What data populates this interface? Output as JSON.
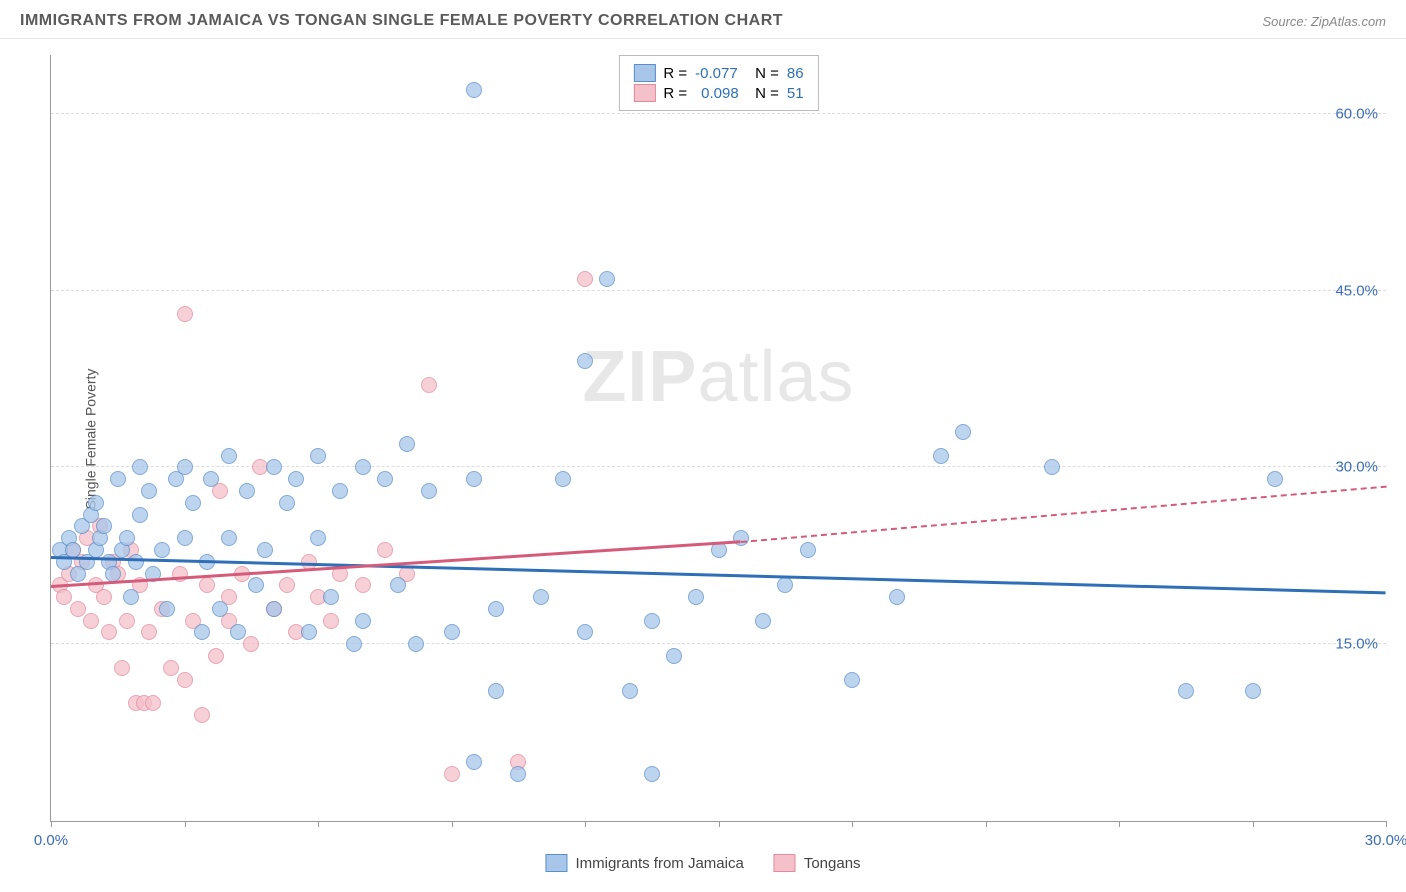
{
  "title": "IMMIGRANTS FROM JAMAICA VS TONGAN SINGLE FEMALE POVERTY CORRELATION CHART",
  "source": "Source: ZipAtlas.com",
  "ylabel": "Single Female Poverty",
  "watermark_zip": "ZIP",
  "watermark_atlas": "atlas",
  "chart": {
    "type": "scatter",
    "xlim": [
      0,
      30
    ],
    "ylim": [
      0,
      65
    ],
    "background_color": "#ffffff",
    "grid_color": "#dddddd",
    "xtick_positions": [
      0,
      3,
      6,
      9,
      12,
      15,
      18,
      21,
      24,
      27,
      30
    ],
    "xtick_labels": {
      "0": "0.0%",
      "30": "30.0%"
    },
    "ytick_positions": [
      15,
      30,
      45,
      60
    ],
    "ytick_labels": {
      "15": "15.0%",
      "30": "30.0%",
      "45": "45.0%",
      "60": "60.0%"
    },
    "marker_size": 16,
    "series": [
      {
        "name": "Immigrants from Jamaica",
        "fill_color": "#a8c6ea",
        "stroke_color": "#5b8fc7",
        "line_color": "#2f6fb8",
        "R": "-0.077",
        "N": "86",
        "trend": {
          "x1": 0,
          "y1": 22.5,
          "x2": 30,
          "y2": 19.5
        },
        "points": [
          [
            0.2,
            23
          ],
          [
            0.3,
            22
          ],
          [
            0.4,
            24
          ],
          [
            0.5,
            23
          ],
          [
            0.6,
            21
          ],
          [
            0.7,
            25
          ],
          [
            0.8,
            22
          ],
          [
            0.9,
            26
          ],
          [
            1.0,
            23
          ],
          [
            1.0,
            27
          ],
          [
            1.1,
            24
          ],
          [
            1.2,
            25
          ],
          [
            1.3,
            22
          ],
          [
            1.4,
            21
          ],
          [
            1.5,
            29
          ],
          [
            1.6,
            23
          ],
          [
            1.7,
            24
          ],
          [
            1.8,
            19
          ],
          [
            1.9,
            22
          ],
          [
            2.0,
            30
          ],
          [
            2.0,
            26
          ],
          [
            2.2,
            28
          ],
          [
            2.3,
            21
          ],
          [
            2.5,
            23
          ],
          [
            2.6,
            18
          ],
          [
            2.8,
            29
          ],
          [
            3.0,
            24
          ],
          [
            3.0,
            30
          ],
          [
            3.2,
            27
          ],
          [
            3.4,
            16
          ],
          [
            3.5,
            22
          ],
          [
            3.6,
            29
          ],
          [
            3.8,
            18
          ],
          [
            4.0,
            24
          ],
          [
            4.0,
            31
          ],
          [
            4.2,
            16
          ],
          [
            4.4,
            28
          ],
          [
            4.6,
            20
          ],
          [
            4.8,
            23
          ],
          [
            5.0,
            30
          ],
          [
            5.0,
            18
          ],
          [
            5.3,
            27
          ],
          [
            5.5,
            29
          ],
          [
            5.8,
            16
          ],
          [
            6.0,
            24
          ],
          [
            6.0,
            31
          ],
          [
            6.3,
            19
          ],
          [
            6.5,
            28
          ],
          [
            6.8,
            15
          ],
          [
            7.0,
            30
          ],
          [
            7.0,
            17
          ],
          [
            7.5,
            29
          ],
          [
            7.8,
            20
          ],
          [
            8.0,
            32
          ],
          [
            8.2,
            15
          ],
          [
            8.5,
            28
          ],
          [
            9.0,
            16
          ],
          [
            9.5,
            29
          ],
          [
            9.5,
            5
          ],
          [
            9.5,
            62
          ],
          [
            10.0,
            18
          ],
          [
            10.0,
            11
          ],
          [
            10.5,
            4
          ],
          [
            11.0,
            19
          ],
          [
            11.5,
            29
          ],
          [
            12.0,
            16
          ],
          [
            12.0,
            39
          ],
          [
            12.5,
            46
          ],
          [
            13.0,
            11
          ],
          [
            13.5,
            17
          ],
          [
            13.5,
            4
          ],
          [
            14.0,
            14
          ],
          [
            14.5,
            19
          ],
          [
            15.0,
            23
          ],
          [
            15.5,
            24
          ],
          [
            16.0,
            17
          ],
          [
            16.5,
            20
          ],
          [
            17.0,
            23
          ],
          [
            18.0,
            12
          ],
          [
            19.0,
            19
          ],
          [
            20.0,
            31
          ],
          [
            20.5,
            33
          ],
          [
            22.5,
            30
          ],
          [
            25.5,
            11
          ],
          [
            27.0,
            11
          ],
          [
            27.5,
            29
          ]
        ]
      },
      {
        "name": "Tongans",
        "fill_color": "#f4c0ca",
        "stroke_color": "#e28a9c",
        "line_color": "#d65a7a",
        "R": "0.098",
        "N": "51",
        "trend_solid": {
          "x1": 0,
          "y1": 20,
          "x2": 15.5,
          "y2": 23.8
        },
        "trend_dashed": {
          "x1": 15.5,
          "y1": 23.8,
          "x2": 30,
          "y2": 28.5
        },
        "points": [
          [
            0.2,
            20
          ],
          [
            0.3,
            19
          ],
          [
            0.4,
            21
          ],
          [
            0.5,
            23
          ],
          [
            0.6,
            18
          ],
          [
            0.7,
            22
          ],
          [
            0.8,
            24
          ],
          [
            0.9,
            17
          ],
          [
            1.0,
            20
          ],
          [
            1.1,
            25
          ],
          [
            1.2,
            19
          ],
          [
            1.3,
            16
          ],
          [
            1.4,
            22
          ],
          [
            1.5,
            21
          ],
          [
            1.6,
            13
          ],
          [
            1.7,
            17
          ],
          [
            1.8,
            23
          ],
          [
            1.9,
            10
          ],
          [
            2.0,
            20
          ],
          [
            2.1,
            10
          ],
          [
            2.2,
            16
          ],
          [
            2.3,
            10
          ],
          [
            2.5,
            18
          ],
          [
            2.7,
            13
          ],
          [
            2.9,
            21
          ],
          [
            3.0,
            12
          ],
          [
            3.0,
            43
          ],
          [
            3.2,
            17
          ],
          [
            3.4,
            9
          ],
          [
            3.5,
            20
          ],
          [
            3.7,
            14
          ],
          [
            3.8,
            28
          ],
          [
            4.0,
            19
          ],
          [
            4.0,
            17
          ],
          [
            4.3,
            21
          ],
          [
            4.5,
            15
          ],
          [
            4.7,
            30
          ],
          [
            5.0,
            18
          ],
          [
            5.3,
            20
          ],
          [
            5.5,
            16
          ],
          [
            5.8,
            22
          ],
          [
            6.0,
            19
          ],
          [
            6.3,
            17
          ],
          [
            6.5,
            21
          ],
          [
            7.0,
            20
          ],
          [
            7.5,
            23
          ],
          [
            8.0,
            21
          ],
          [
            8.5,
            37
          ],
          [
            9.0,
            4
          ],
          [
            10.5,
            5
          ],
          [
            12.0,
            46
          ]
        ]
      }
    ]
  },
  "legend_labels": {
    "R": "R =",
    "N": "N =",
    "series1": "Immigrants from Jamaica",
    "series2": "Tongans"
  }
}
